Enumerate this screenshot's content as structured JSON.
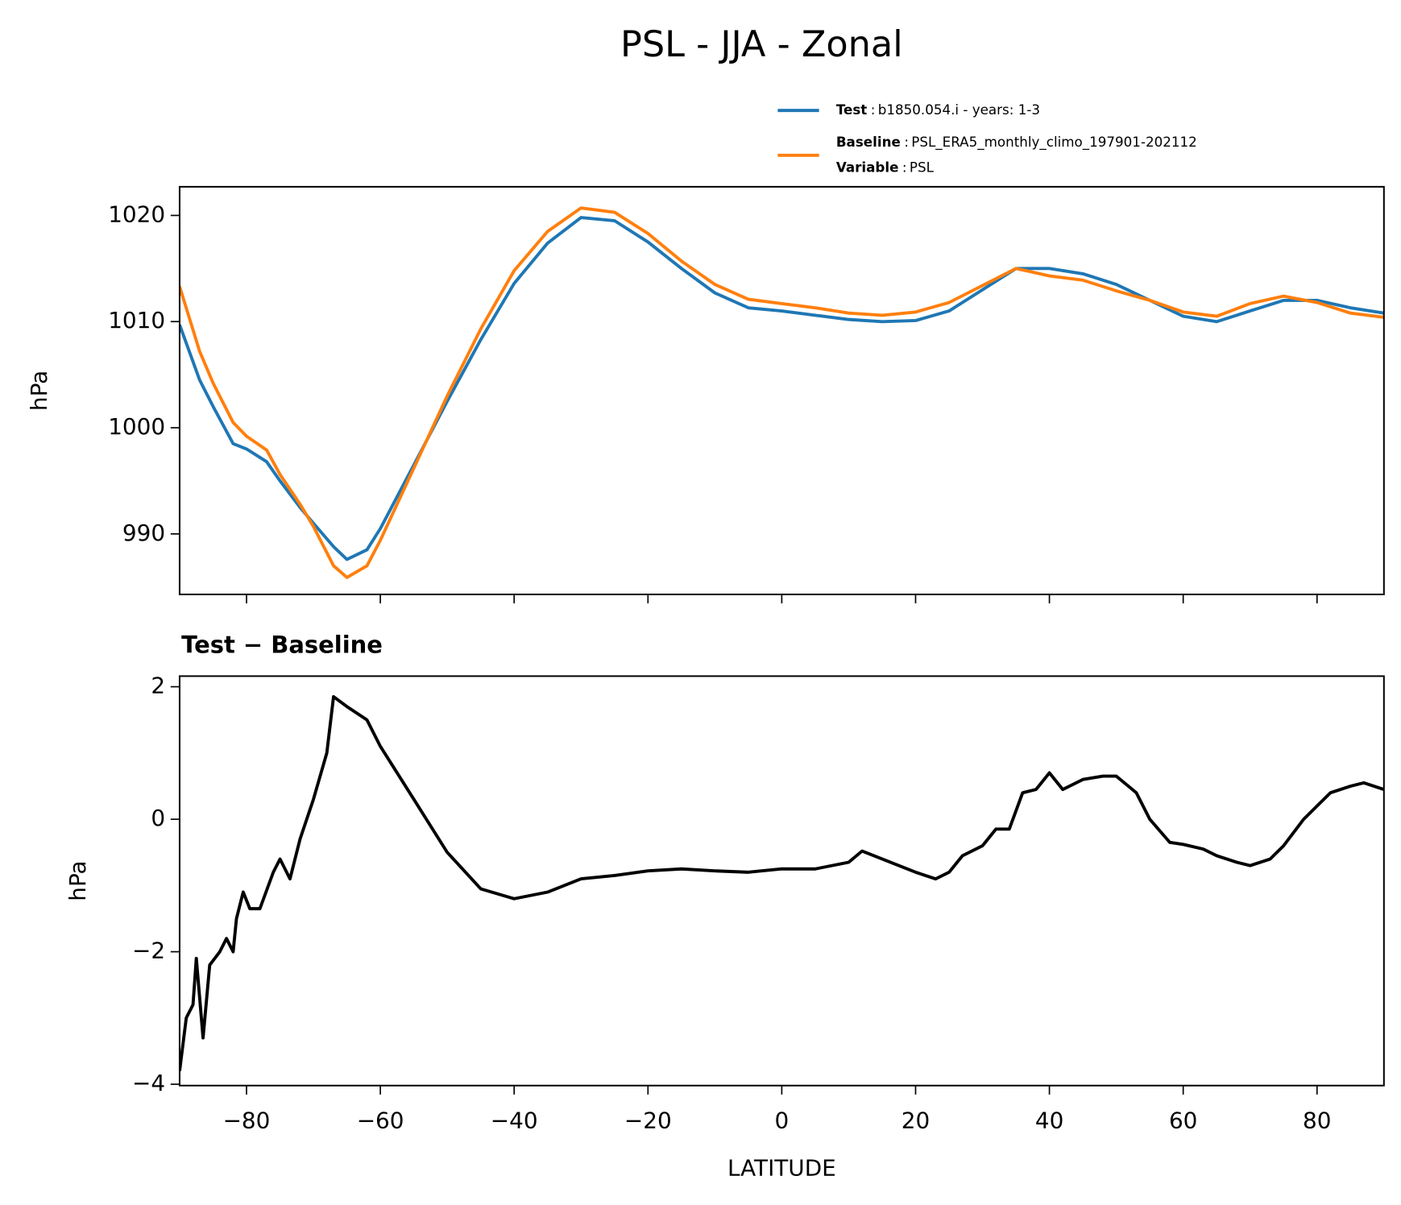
{
  "title": "PSL - JJA - Zonal",
  "chart_data": [
    {
      "type": "line",
      "ylabel": "hPa",
      "legend": {
        "corner": "above-right",
        "separator": ":",
        "extra": {
          "key": "Variable",
          "text": "PSL"
        }
      },
      "x": [
        -90,
        -87,
        -85,
        -82,
        -80,
        -77,
        -75,
        -72,
        -70,
        -67,
        -65,
        -62,
        -60,
        -55,
        -50,
        -45,
        -40,
        -35,
        -30,
        -25,
        -20,
        -15,
        -10,
        -5,
        0,
        5,
        10,
        15,
        20,
        25,
        30,
        35,
        40,
        45,
        50,
        55,
        60,
        65,
        70,
        75,
        80,
        85,
        90
      ],
      "series": [
        {
          "name": "Test",
          "description": "b1850.054.i - years: 1-3",
          "color": "#1f77b4",
          "values": [
            1009.7,
            1004.5,
            1002,
            998.5,
            998,
            996.8,
            995,
            992.5,
            991,
            988.8,
            987.6,
            988.5,
            990.5,
            996.5,
            1002.5,
            1008.3,
            1013.6,
            1017.4,
            1019.8,
            1019.5,
            1017.5,
            1015,
            1012.7,
            1011.3,
            1011,
            1010.6,
            1010.2,
            1010,
            1010.1,
            1011,
            1013,
            1015,
            1015,
            1014.5,
            1013.5,
            1012,
            1010.5,
            1010,
            1011,
            1012,
            1012,
            1011.3,
            1010.8
          ]
        },
        {
          "name": "Baseline",
          "description": "PSL_ERA5_monthly_climo_197901-202112",
          "color": "#ff7f0e",
          "values": [
            1013.3,
            1007.2,
            1004.2,
            1000.5,
            999.2,
            997.9,
            995.6,
            992.8,
            990.7,
            987,
            985.9,
            987,
            989.4,
            996.2,
            1003,
            1009.3,
            1014.8,
            1018.5,
            1020.7,
            1020.3,
            1018.3,
            1015.7,
            1013.5,
            1012.1,
            1011.7,
            1011.3,
            1010.8,
            1010.6,
            1010.9,
            1011.8,
            1013.4,
            1015,
            1014.3,
            1013.9,
            1012.9,
            1012,
            1010.9,
            1010.5,
            1011.7,
            1012.4,
            1011.8,
            1010.8,
            1010.4
          ]
        }
      ],
      "xlim": [
        -90,
        90
      ],
      "xticks": [
        -80,
        -60,
        -40,
        -20,
        0,
        20,
        40,
        60,
        80
      ],
      "xtick_labels": false,
      "ylim": [
        984.3,
        1022.7
      ],
      "yticks": [
        990,
        1000,
        1010,
        1020
      ]
    },
    {
      "type": "line",
      "title": "Test − Baseline",
      "ylabel": "hPa",
      "xlabel": "LATITUDE",
      "x": [
        -90,
        -89,
        -88,
        -87.5,
        -86.5,
        -85.5,
        -84,
        -83,
        -82,
        -81.5,
        -80.5,
        -79.5,
        -78,
        -76,
        -75,
        -73.5,
        -72,
        -70,
        -68,
        -67,
        -65,
        -62,
        -60,
        -55,
        -50,
        -45,
        -40,
        -35,
        -30,
        -25,
        -20,
        -15,
        -10,
        -5,
        0,
        5,
        10,
        12,
        15,
        20,
        23,
        25,
        27,
        30,
        32,
        34,
        36,
        38,
        40,
        42,
        45,
        48,
        50,
        53,
        55,
        58,
        60,
        63,
        65,
        68,
        70,
        73,
        75,
        78,
        80,
        82,
        85,
        87,
        90
      ],
      "series": [
        {
          "name": "Test − Baseline",
          "color": "#000000",
          "values": [
            -3.8,
            -3,
            -2.8,
            -2.1,
            -3.3,
            -2.2,
            -2,
            -1.8,
            -2,
            -1.5,
            -1.1,
            -1.35,
            -1.35,
            -0.8,
            -0.6,
            -0.9,
            -0.3,
            0.3,
            1,
            1.85,
            1.7,
            1.5,
            1.1,
            0.3,
            -0.5,
            -1.05,
            -1.2,
            -1.1,
            -0.9,
            -0.85,
            -0.78,
            -0.75,
            -0.78,
            -0.8,
            -0.75,
            -0.75,
            -0.65,
            -0.48,
            -0.6,
            -0.8,
            -0.9,
            -0.8,
            -0.55,
            -0.4,
            -0.15,
            -0.15,
            0.4,
            0.45,
            0.7,
            0.45,
            0.6,
            0.65,
            0.65,
            0.4,
            0,
            -0.35,
            -0.38,
            -0.45,
            -0.55,
            -0.65,
            -0.7,
            -0.6,
            -0.4,
            0,
            0.2,
            0.4,
            0.5,
            0.55,
            0.45
          ]
        }
      ],
      "xlim": [
        -90,
        90
      ],
      "xticks": [
        {
          "value": -80,
          "label": "−80"
        },
        {
          "value": -60,
          "label": "−60"
        },
        {
          "value": -40,
          "label": "−40"
        },
        {
          "value": -20,
          "label": "−20"
        },
        0,
        20,
        40,
        60,
        80
      ],
      "ylim": [
        -4.02,
        2.16
      ],
      "yticks": [
        {
          "value": -4,
          "label": "−4"
        },
        {
          "value": -2,
          "label": "−2"
        },
        0,
        2
      ]
    }
  ]
}
